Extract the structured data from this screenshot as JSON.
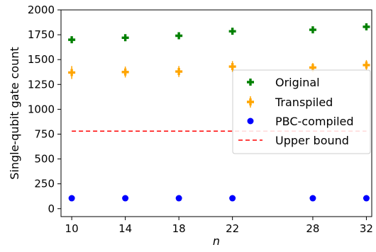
{
  "chart_data": {
    "type": "scatter",
    "xlabel": "n",
    "ylabel": "Single-qubit gate count",
    "x": [
      10,
      14,
      18,
      22,
      28,
      32
    ],
    "xticks": [
      "10",
      "14",
      "18",
      "22",
      "28",
      "32"
    ],
    "yticks": [
      "0",
      "250",
      "500",
      "750",
      "1000",
      "1250",
      "1500",
      "1750",
      "2000"
    ],
    "xlim": [
      9.2,
      32.4
    ],
    "ylim": [
      -80,
      2000
    ],
    "legend_position": "center-right",
    "series": [
      {
        "name": "Original",
        "marker": "plus",
        "color": "#008000",
        "values": [
          1700,
          1720,
          1740,
          1785,
          1800,
          1830
        ],
        "errors": [
          0,
          0,
          0,
          0,
          0,
          0
        ]
      },
      {
        "name": "Transpiled",
        "marker": "plus",
        "color": "#ffa500",
        "values": [
          1370,
          1375,
          1380,
          1430,
          1420,
          1445
        ],
        "errors": [
          65,
          55,
          55,
          55,
          45,
          50
        ]
      },
      {
        "name": "PBC-compiled",
        "marker": "circle",
        "color": "#0000ff",
        "values": [
          105,
          105,
          105,
          105,
          105,
          105
        ],
        "errors": [
          0,
          0,
          0,
          0,
          0,
          0
        ]
      }
    ],
    "reference_lines": [
      {
        "name": "Upper bound",
        "style": "dashed",
        "color": "#ff0000",
        "value": 780,
        "x_range": [
          10,
          32
        ]
      }
    ]
  }
}
